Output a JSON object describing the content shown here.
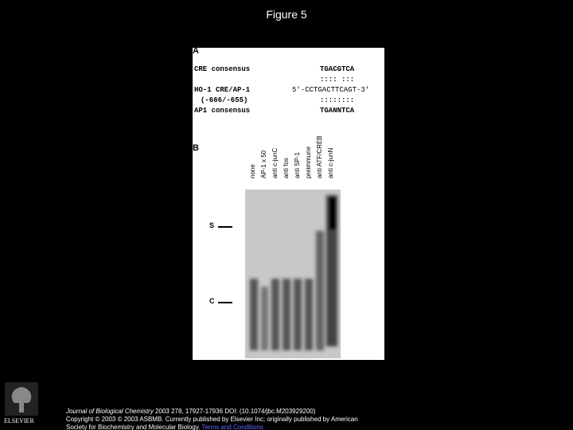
{
  "title": "Figure 5",
  "panel_a": {
    "label": "A",
    "rows": [
      {
        "name": "CRE consensus",
        "sequence": "TGACGTCA"
      },
      {
        "name": "",
        "sequence": ":::: :::"
      },
      {
        "name": "HO-1 CRE/AP-1",
        "sequence": "5'-CCTGACTTCAGT-3'"
      },
      {
        "name": "(-666/-655)",
        "sequence": "::::::::"
      },
      {
        "name": "AP1 consensus",
        "sequence": "TGANNTCA"
      }
    ]
  },
  "panel_b": {
    "label": "B",
    "lanes": [
      "none",
      "AP-1 x 50",
      "anti c-junC",
      "anti fos",
      "anti SP-1",
      "preimmune",
      "anti ATF/CREB",
      "anti c-junN"
    ],
    "markers": [
      "S",
      "C"
    ]
  },
  "footer": {
    "journal": "Journal of Biological Chemistry",
    "citation": " 2003 278, 17927-17936 DOI: (10.1074/jbc.M203929200)",
    "copyright": "Copyright © 2003 © 2003 ASBMB. Currently published by Elsevier Inc; originally published by American",
    "copyright_cont": "Society for Biochemistry and Molecular Biology.",
    "terms_link": "Terms and Conditions"
  },
  "logo": "ELSEVIER"
}
